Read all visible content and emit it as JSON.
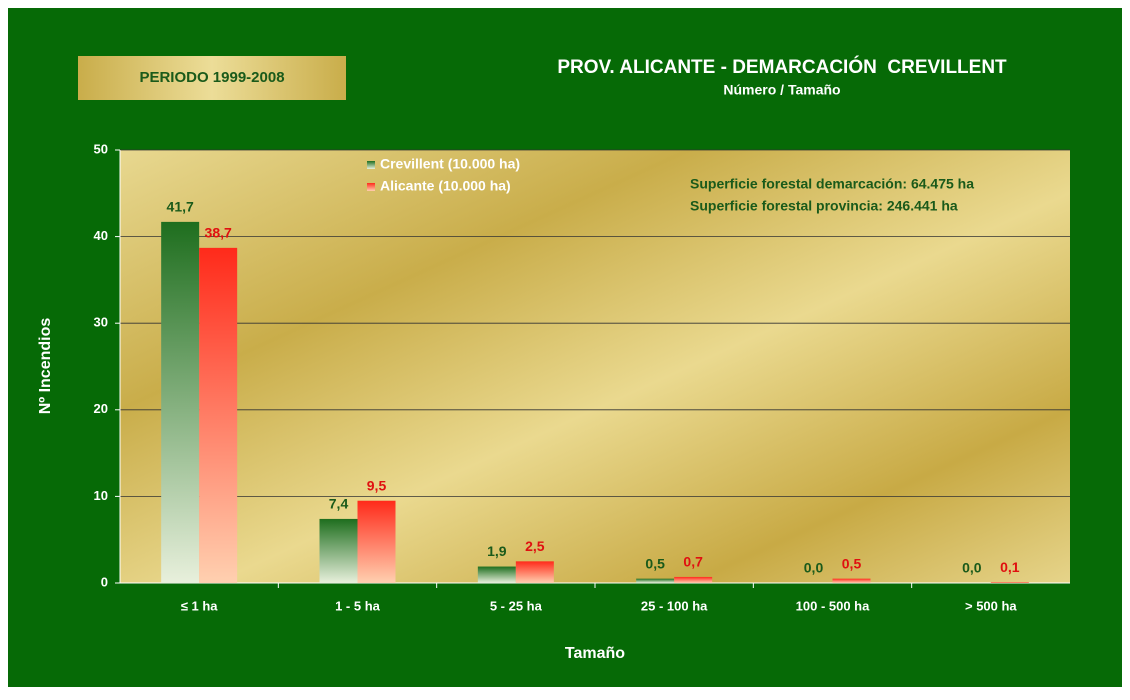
{
  "chart_data": {
    "type": "bar",
    "title": "PROV. ALICANTE - DEMARCACIÓN  CREVILLENT",
    "subtitle": "Número / Tamaño",
    "period": "PERIODO 1999-2008",
    "annotations": [
      "Superficie forestal demarcación: 64.475 ha",
      "Superficie forestal provincia: 246.441 ha"
    ],
    "x_label": "Tamaño",
    "y_label": "Nº Incendios",
    "categories": [
      "≤ 1 ha",
      "1 - 5 ha",
      "5 - 25 ha",
      "25 - 100 ha",
      "100 - 500 ha",
      "> 500 ha"
    ],
    "series": [
      {
        "name": "Crevillent (10.000 ha)",
        "color": "#1e6e1e",
        "label_color": "#1a5a1a",
        "values": [
          41.7,
          7.4,
          1.9,
          0.5,
          0.0,
          0.0
        ],
        "value_labels": [
          "41,7",
          "7,4",
          "1,9",
          "0,5",
          "0,0",
          "0,0"
        ]
      },
      {
        "name": "Alicante (10.000 ha)",
        "color": "#ff2a1a",
        "label_color": "#e01010",
        "values": [
          38.7,
          9.5,
          2.5,
          0.7,
          0.5,
          0.1
        ],
        "value_labels": [
          "38,7",
          "9,5",
          "2,5",
          "0,7",
          "0,5",
          "0,1"
        ]
      }
    ],
    "ylim": [
      0,
      50
    ],
    "yticks": [
      0,
      10,
      20,
      30,
      40,
      50
    ],
    "grid": true
  }
}
